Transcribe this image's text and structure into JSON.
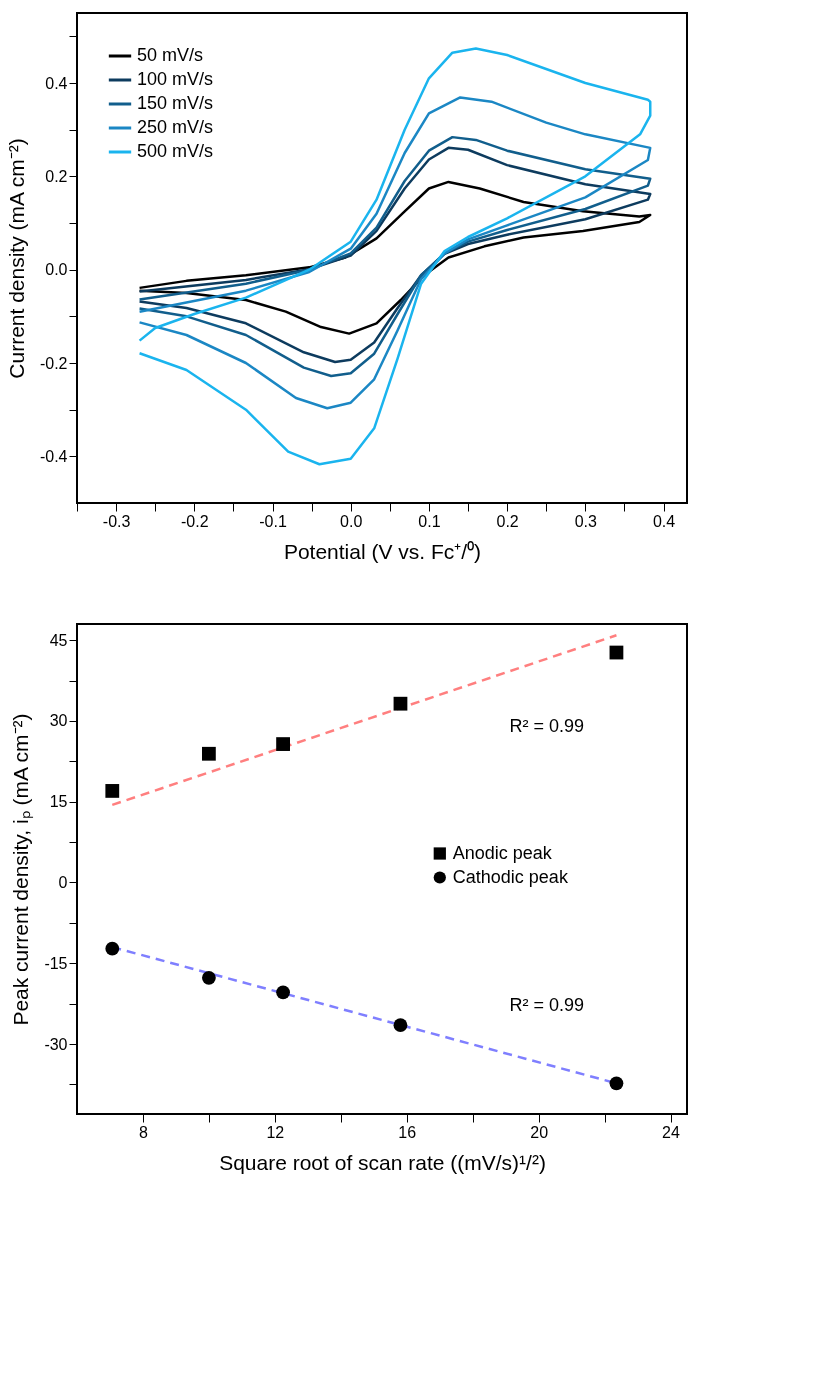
{
  "chart_data": [
    {
      "type": "line",
      "xlabel": "Potential (V vs. Fc⁺/⁰)",
      "ylabel": "Current density (mA cm⁻²)",
      "xlim": [
        -0.35,
        0.43
      ],
      "ylim": [
        -0.5,
        0.55
      ],
      "xticks": [
        {
          "value": -0.35,
          "label": null
        },
        -0.3,
        {
          "value": -0.25,
          "label": null
        },
        -0.2,
        {
          "value": -0.15,
          "label": null
        },
        -0.1,
        {
          "value": -0.05,
          "label": null
        },
        {
          "value": 0,
          "label": "0.0"
        },
        {
          "value": 0.05,
          "label": null
        },
        0.1,
        {
          "value": 0.15,
          "label": null
        },
        0.2,
        {
          "value": 0.25,
          "label": null
        },
        0.3,
        {
          "value": 0.35,
          "label": null
        },
        0.4
      ],
      "yticks": [
        -0.4,
        {
          "value": -0.3,
          "label": null
        },
        -0.2,
        {
          "value": -0.1,
          "label": null
        },
        {
          "value": 0,
          "label": "0.0"
        },
        {
          "value": 0.1,
          "label": null
        },
        0.2,
        {
          "value": 0.3,
          "label": null
        },
        0.4,
        {
          "value": 0.5,
          "label": null
        }
      ],
      "grid": false,
      "legend": "top left",
      "line_style": "solid",
      "series": [
        {
          "name": "50 mV/s",
          "color": "#000000",
          "x": [
            -0.27,
            -0.21,
            -0.134,
            -0.053,
            -0.007,
            0.033,
            0.069,
            0.1,
            0.125,
            0.165,
            0.221,
            0.297,
            0.369,
            0.383,
            0.369,
            0.297,
            0.221,
            0.171,
            0.125,
            0.094,
            0.064,
            0.033,
            -0.002,
            -0.038,
            -0.083,
            -0.134,
            -0.21,
            -0.27
          ],
          "values": [
            -0.039,
            -0.024,
            -0.012,
            0.005,
            0.026,
            0.067,
            0.125,
            0.174,
            0.188,
            0.174,
            0.145,
            0.125,
            0.114,
            0.117,
            0.102,
            0.083,
            0.069,
            0.05,
            0.026,
            -0.012,
            -0.065,
            -0.115,
            -0.137,
            -0.123,
            -0.09,
            -0.065,
            -0.05,
            -0.045
          ]
        },
        {
          "name": "100 mV/s",
          "color": "#0d3b5e",
          "x": [
            -0.27,
            -0.134,
            -0.053,
            0.0,
            0.033,
            0.069,
            0.1,
            0.125,
            0.15,
            0.2,
            0.3,
            0.383,
            0.38,
            0.3,
            0.2,
            0.15,
            0.12,
            0.09,
            0.06,
            0.03,
            0.0,
            -0.02,
            -0.06,
            -0.134,
            -0.21,
            -0.27
          ],
          "values": [
            -0.047,
            -0.022,
            0.001,
            0.03,
            0.083,
            0.174,
            0.236,
            0.261,
            0.257,
            0.224,
            0.183,
            0.162,
            0.15,
            0.108,
            0.075,
            0.055,
            0.034,
            -0.012,
            -0.082,
            -0.156,
            -0.193,
            -0.198,
            -0.177,
            -0.115,
            -0.082,
            -0.068
          ]
        },
        {
          "name": "150 mV/s",
          "color": "#115e8c",
          "x": [
            -0.27,
            -0.134,
            -0.053,
            0.0,
            0.033,
            0.069,
            0.1,
            0.13,
            0.16,
            0.2,
            0.3,
            0.383,
            0.38,
            0.3,
            0.2,
            0.15,
            0.12,
            0.09,
            0.06,
            0.03,
            0.0,
            -0.025,
            -0.06,
            -0.134,
            -0.21,
            -0.27
          ],
          "values": [
            -0.064,
            -0.03,
            0.0,
            0.035,
            0.09,
            0.19,
            0.255,
            0.284,
            0.278,
            0.255,
            0.215,
            0.195,
            0.18,
            0.13,
            0.085,
            0.06,
            0.035,
            -0.012,
            -0.095,
            -0.18,
            -0.222,
            -0.228,
            -0.21,
            -0.14,
            -0.1,
            -0.083
          ]
        },
        {
          "name": "250 mV/s",
          "color": "#1b87c4",
          "x": [
            -0.27,
            -0.134,
            -0.053,
            0.0,
            0.033,
            0.069,
            0.1,
            0.14,
            0.18,
            0.25,
            0.3,
            0.383,
            0.38,
            0.3,
            0.2,
            0.15,
            0.12,
            0.09,
            0.06,
            0.03,
            0.0,
            -0.03,
            -0.07,
            -0.134,
            -0.21,
            -0.27
          ],
          "values": [
            -0.09,
            -0.045,
            -0.005,
            0.045,
            0.12,
            0.25,
            0.335,
            0.369,
            0.36,
            0.315,
            0.29,
            0.261,
            0.235,
            0.155,
            0.095,
            0.065,
            0.035,
            -0.02,
            -0.13,
            -0.235,
            -0.285,
            -0.297,
            -0.275,
            -0.2,
            -0.14,
            -0.113
          ]
        },
        {
          "name": "500 mV/s",
          "color": "#1ab4ee",
          "x": [
            -0.27,
            -0.25,
            -0.2,
            -0.134,
            -0.053,
            0.0,
            0.033,
            0.069,
            0.1,
            0.13,
            0.16,
            0.2,
            0.3,
            0.38,
            0.383,
            0.383,
            0.37,
            0.3,
            0.2,
            0.15,
            0.12,
            0.09,
            0.06,
            0.03,
            0.0,
            -0.04,
            -0.08,
            -0.134,
            -0.21,
            -0.27
          ],
          "values": [
            -0.152,
            -0.125,
            -0.095,
            -0.06,
            0.0,
            0.06,
            0.15,
            0.3,
            0.41,
            0.465,
            0.474,
            0.46,
            0.4,
            0.364,
            0.36,
            0.33,
            0.29,
            0.2,
            0.11,
            0.07,
            0.04,
            -0.03,
            -0.19,
            -0.34,
            -0.405,
            -0.417,
            -0.39,
            -0.3,
            -0.215,
            -0.179
          ]
        }
      ]
    },
    {
      "type": "scatter",
      "xlabel": "Square root of scan rate ((mV/s)¹/²)",
      "ylabel": "Peak current density, iₚ (mA cm⁻²)",
      "xlim": [
        6,
        24.5
      ],
      "ylim": [
        -43,
        48
      ],
      "xticks": [
        8,
        {
          "value": 10,
          "label": null
        },
        12,
        {
          "value": 14,
          "label": null
        },
        16,
        {
          "value": 18,
          "label": null
        },
        20,
        {
          "value": 22,
          "label": null
        },
        24
      ],
      "yticks": [
        {
          "value": -37.5,
          "label": null
        },
        -30,
        {
          "value": -22.5,
          "label": null
        },
        -15,
        {
          "value": -7.5,
          "label": null
        },
        0,
        {
          "value": 7.5,
          "label": null
        },
        15,
        {
          "value": 22.5,
          "label": null
        },
        30,
        {
          "value": 37.5,
          "label": null
        },
        45
      ],
      "grid": false,
      "legend": "right",
      "annotations": [
        "R² = 0.99",
        "R² = 0.99"
      ],
      "series": [
        {
          "type": "line",
          "color": "#ff7f7f",
          "line_style": "dashed",
          "x": [
            7.07,
            22.36
          ],
          "values": [
            14.4,
            45.9
          ]
        },
        {
          "type": "line",
          "color": "#7f7fff",
          "line_style": "dashed",
          "x": [
            7.07,
            22.36
          ],
          "values": [
            -12.0,
            -37.3
          ]
        },
        {
          "name": "Anodic peak",
          "color": "#000000",
          "marker": "square",
          "x": [
            7.07,
            10.0,
            12.25,
            15.81,
            22.36
          ],
          "values": [
            17.0,
            23.9,
            25.7,
            33.2,
            42.7
          ]
        },
        {
          "name": "Cathodic peak",
          "color": "#000000",
          "marker": "circle",
          "x": [
            7.07,
            10.0,
            12.25,
            15.81,
            22.36
          ],
          "values": [
            -12.3,
            -17.7,
            -20.4,
            -26.5,
            -37.3
          ]
        }
      ]
    }
  ]
}
